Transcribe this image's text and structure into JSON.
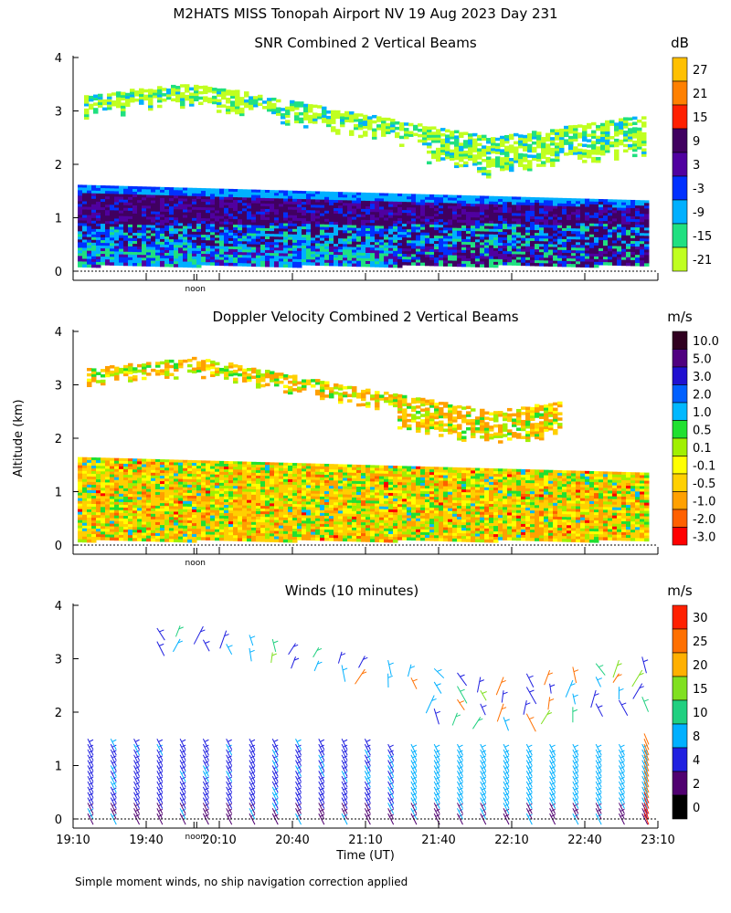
{
  "page_title": "M2HATS MISS Tonopah Airport NV  19 Aug 2023 Day 231",
  "y_axis_label": "Altitude (km)",
  "x_axis_label": "Time (UT)",
  "footnote": "Simple moment winds, no ship navigation correction applied",
  "noon_label": "noon",
  "chart_data": [
    {
      "type": "heatmap",
      "title": "SNR Combined 2 Vertical Beams",
      "units": "dB",
      "ylim": [
        0,
        4
      ],
      "yticks": [
        "0",
        "1",
        "2",
        "3",
        "4"
      ],
      "colorbar_labels": [
        "27",
        "21",
        "15",
        "9",
        "3",
        "-3",
        "-9",
        "-15",
        "-21"
      ],
      "colorbar_colors": [
        "#ffc000",
        "#ff8000",
        "#ff2000",
        "#400060",
        "#5000a0",
        "#0030ff",
        "#00b0ff",
        "#20e080",
        "#c0ff20"
      ]
    },
    {
      "type": "heatmap",
      "title": "Doppler Velocity Combined 2 Vertical Beams",
      "units": "m/s",
      "ylim": [
        0,
        4
      ],
      "yticks": [
        "0",
        "1",
        "2",
        "3",
        "4"
      ],
      "colorbar_labels": [
        "10.0",
        "5.0",
        "3.0",
        "2.0",
        "1.0",
        "0.5",
        "0.1",
        "-0.1",
        "-0.5",
        "-1.0",
        "-2.0",
        "-3.0"
      ],
      "colorbar_colors": [
        "#300020",
        "#500080",
        "#2010d0",
        "#0060ff",
        "#00b8ff",
        "#20e030",
        "#a0f000",
        "#ffff00",
        "#ffd000",
        "#ffa000",
        "#ff6000",
        "#ff0000"
      ]
    },
    {
      "type": "wind_barbs",
      "title": "Winds (10 minutes)",
      "units": "m/s",
      "ylim": [
        0,
        4
      ],
      "yticks": [
        "0",
        "1",
        "2",
        "3",
        "4"
      ],
      "xticks": [
        "19:10",
        "19:40",
        "20:10",
        "20:40",
        "21:10",
        "21:40",
        "22:10",
        "22:40",
        "23:10"
      ],
      "colorbar_labels": [
        "30",
        "25",
        "20",
        "15",
        "10",
        "8",
        "4",
        "2",
        "0"
      ],
      "colorbar_colors": [
        "#ff2000",
        "#ff7000",
        "#ffb000",
        "#80e020",
        "#20d080",
        "#00b0ff",
        "#2020e0",
        "#500070",
        "#000000"
      ]
    }
  ]
}
